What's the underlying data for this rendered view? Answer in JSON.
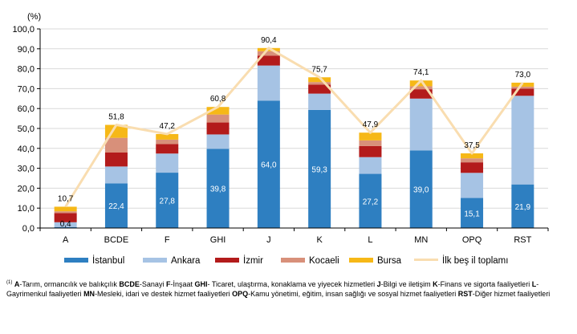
{
  "chart_data": {
    "type": "bar",
    "stacked": true,
    "unit_label": "(%)",
    "categories": [
      "A",
      "BCDE",
      "F",
      "GHI",
      "J",
      "K",
      "L",
      "MN",
      "OPQ",
      "RST"
    ],
    "ylim": [
      0,
      100
    ],
    "yticks": [
      "0,0",
      "10,0",
      "20,0",
      "30,0",
      "40,0",
      "50,0",
      "60,0",
      "70,0",
      "80,0",
      "90,0",
      "100,0"
    ],
    "series": [
      {
        "name": "İstanbul",
        "color": "#2e7fc1",
        "values": [
          0.4,
          22.4,
          27.8,
          39.8,
          64.0,
          59.3,
          27.2,
          39.0,
          15.1,
          21.9
        ],
        "labels": [
          "0,4",
          "22,4",
          "27,8",
          "39,8",
          "64,0",
          "59,3",
          "27,2",
          "39,0",
          "15,1",
          "21,9"
        ]
      },
      {
        "name": "Ankara",
        "color": "#a6c3e4",
        "values": [
          2.5,
          8.5,
          9.6,
          7.2,
          17.6,
          8.2,
          8.4,
          26.0,
          12.6,
          44.5
        ]
      },
      {
        "name": "İzmir",
        "color": "#b31b1b",
        "values": [
          4.6,
          7.0,
          4.8,
          6.0,
          5.0,
          4.5,
          5.6,
          4.7,
          5.3,
          3.6
        ]
      },
      {
        "name": "Kocaeli",
        "color": "#d8907a",
        "values": [
          0.9,
          7.4,
          2.2,
          4.0,
          2.2,
          1.3,
          2.8,
          1.5,
          2.0,
          1.0
        ]
      },
      {
        "name": "Bursa",
        "color": "#f6b817",
        "values": [
          2.3,
          6.5,
          2.8,
          3.8,
          1.6,
          2.4,
          3.9,
          2.9,
          2.5,
          2.0
        ]
      }
    ],
    "line": {
      "name": "İlk beş il toplamı",
      "color": "#f9ddb0",
      "values": [
        10.7,
        51.8,
        47.2,
        60.8,
        90.4,
        75.7,
        47.9,
        74.1,
        37.5,
        73.0
      ],
      "labels": [
        "10,7",
        "51,8",
        "47,2",
        "60,8",
        "90,4",
        "75,7",
        "47,9",
        "74,1",
        "37,5",
        "73,0"
      ]
    },
    "legend_position": "bottom"
  },
  "footnote": {
    "marker": "(1)",
    "entries": [
      {
        "code": "A",
        "text": "-Tarım, ormancılık ve balıkçılık"
      },
      {
        "code": "BCDE",
        "text": "-Sanayi"
      },
      {
        "code": "F",
        "text": "-İnşaat"
      },
      {
        "code": "GHI",
        "text": "- Ticaret, ulaştırma, konaklama ve yiyecek hizmetleri"
      },
      {
        "code": "J",
        "text": "-Bilgi ve iletişim"
      },
      {
        "code": "K",
        "text": "-Finans ve sigorta faaliyetleri"
      },
      {
        "code": "L",
        "text": "-Gayrimenkul faaliyetleri"
      },
      {
        "code": "MN",
        "text": "-Mesleki, idari ve destek hizmet faaliyetleri"
      },
      {
        "code": "OPQ",
        "text": "-Kamu yönetimi, eğitim, insan sağlığı ve sosyal hizmet faaliyetleri"
      },
      {
        "code": "RST",
        "text": "-Diğer hizmet faaliyetleri"
      }
    ]
  }
}
